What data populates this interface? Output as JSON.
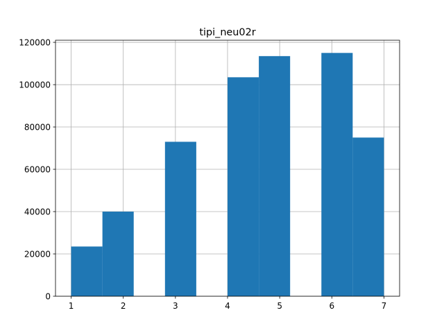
{
  "chart_data": {
    "type": "bar",
    "title": "tipi_neu02r",
    "xlabel": "",
    "ylabel": "",
    "grid": true,
    "legend": "none",
    "bar_color": "#1f77b4",
    "xlim": [
      0.7,
      7.3
    ],
    "ylim": [
      0,
      121000
    ],
    "x_ticks": [
      1,
      2,
      3,
      4,
      5,
      6,
      7
    ],
    "y_ticks": [
      0,
      20000,
      40000,
      60000,
      80000,
      100000,
      120000
    ],
    "bins": [
      {
        "x0": 1.0,
        "x1": 1.6,
        "count": 23500
      },
      {
        "x0": 1.6,
        "x1": 2.2,
        "count": 40000
      },
      {
        "x0": 2.2,
        "x1": 2.8,
        "count": 0
      },
      {
        "x0": 2.8,
        "x1": 3.4,
        "count": 73000
      },
      {
        "x0": 3.4,
        "x1": 4.0,
        "count": 0
      },
      {
        "x0": 4.0,
        "x1": 4.6,
        "count": 103500
      },
      {
        "x0": 4.6,
        "x1": 5.2,
        "count": 113500
      },
      {
        "x0": 5.2,
        "x1": 5.8,
        "count": 0
      },
      {
        "x0": 5.8,
        "x1": 6.4,
        "count": 115000
      },
      {
        "x0": 6.4,
        "x1": 7.0,
        "count": 75000
      }
    ]
  }
}
